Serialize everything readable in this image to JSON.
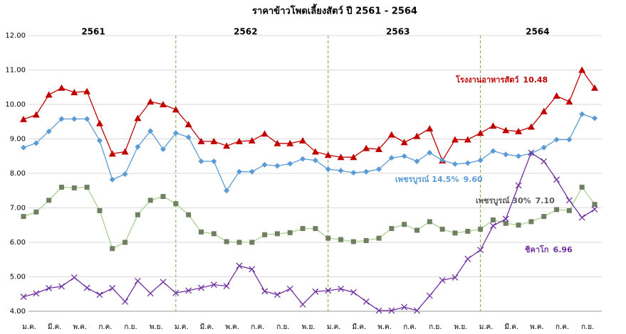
{
  "chart_data": {
    "type": "line",
    "title": "ราคาข้าวโพดเลี้ยงสัตว์ ปี 2561 - 2564",
    "year_labels": [
      "2561",
      "2562",
      "2563",
      "2564"
    ],
    "categories": [
      "ม.ค.",
      null,
      "มี.ค.",
      null,
      "พ.ค.",
      null,
      "ก.ค.",
      null,
      "ก.ย.",
      null,
      "พ.ย.",
      null,
      "ม.ค.",
      null,
      "มี.ค.",
      null,
      "พ.ค.",
      null,
      "ก.ค.",
      null,
      "ก.ย.",
      null,
      "พ.ย.",
      null,
      "ม.ค.",
      null,
      "มี.ค.",
      null,
      "พ.ค.",
      null,
      "ก.ค.",
      null,
      "ก.ย.",
      null,
      "พ.ย.",
      null,
      "ม.ค.",
      null,
      "มี.ค.",
      null,
      "พ.ค.",
      null,
      "ก.ค.",
      null,
      "ก.ย.",
      null
    ],
    "ylim": [
      4,
      12
    ],
    "yticks": [
      {
        "value": 4,
        "label": "4.00"
      },
      {
        "value": 5,
        "label": "5.00"
      },
      {
        "value": 6,
        "label": "6.00"
      },
      {
        "value": 7,
        "label": "7.00"
      },
      {
        "value": 8,
        "label": "8.00"
      },
      {
        "value": 9,
        "label": "9.00"
      },
      {
        "value": 10,
        "label": "10.00"
      },
      {
        "value": 11,
        "label": "11.00"
      },
      {
        "value": 12,
        "label": "12.00"
      }
    ],
    "grid": true,
    "series": [
      {
        "name": "โรงงานอาหารสัตว์",
        "color": "#c00000",
        "marker": "triangle",
        "marker_color": "#c00000",
        "end_label": "10.48",
        "values": [
          9.57,
          9.7,
          10.28,
          10.48,
          10.35,
          10.38,
          9.45,
          8.57,
          8.63,
          9.6,
          10.08,
          10.0,
          9.85,
          9.42,
          8.93,
          8.93,
          8.8,
          8.93,
          8.95,
          9.15,
          8.87,
          8.87,
          8.95,
          8.63,
          8.53,
          8.47,
          8.47,
          8.73,
          8.7,
          9.12,
          8.9,
          9.08,
          9.3,
          8.37,
          8.98,
          8.98,
          9.17,
          9.38,
          9.25,
          9.22,
          9.35,
          9.8,
          10.25,
          10.08,
          11.0,
          10.48
        ]
      },
      {
        "name": "เพชรบูรณ์ 14.5%",
        "color": "#5b9bd5",
        "marker": "diamond",
        "marker_color": "#5b9bd5",
        "end_label": "9.60",
        "values": [
          8.75,
          8.88,
          9.22,
          9.58,
          9.58,
          9.58,
          8.95,
          7.82,
          7.98,
          8.77,
          9.23,
          8.7,
          9.17,
          9.05,
          8.35,
          8.35,
          7.5,
          8.05,
          8.05,
          8.25,
          8.22,
          8.28,
          8.42,
          8.38,
          8.12,
          8.08,
          8.02,
          8.05,
          8.12,
          8.45,
          8.5,
          8.35,
          8.6,
          8.38,
          8.27,
          8.3,
          8.38,
          8.65,
          8.55,
          8.5,
          8.58,
          8.75,
          8.98,
          8.98,
          9.72,
          9.6
        ]
      },
      {
        "name": "เพชรบูรณ์ 30%",
        "color": "#a9d18e",
        "marker": "square",
        "marker_color": "#6e7f62",
        "end_label": "7.10",
        "values": [
          6.75,
          6.88,
          7.22,
          7.6,
          7.58,
          7.6,
          6.92,
          5.82,
          6.0,
          6.8,
          7.22,
          7.33,
          7.12,
          6.8,
          6.3,
          6.25,
          6.02,
          6.0,
          6.0,
          6.22,
          6.25,
          6.28,
          6.4,
          6.4,
          6.12,
          6.08,
          6.02,
          6.05,
          6.12,
          6.4,
          6.52,
          6.35,
          6.6,
          6.38,
          6.27,
          6.32,
          6.38,
          6.65,
          6.55,
          6.5,
          6.6,
          6.75,
          6.95,
          6.92,
          7.6,
          7.1
        ]
      },
      {
        "name": "ชิคาโก",
        "color": "#7030a0",
        "marker": "x",
        "marker_color": "#7030a0",
        "end_label": "6.96",
        "values": [
          4.42,
          4.52,
          4.67,
          4.72,
          4.98,
          4.68,
          4.48,
          4.67,
          4.28,
          4.88,
          4.52,
          4.85,
          4.53,
          4.6,
          4.68,
          4.77,
          4.73,
          5.32,
          5.22,
          4.58,
          4.48,
          4.65,
          4.2,
          4.57,
          4.6,
          4.65,
          4.55,
          4.28,
          4.02,
          4.02,
          4.12,
          4.02,
          4.45,
          4.9,
          4.98,
          5.52,
          5.78,
          6.48,
          6.68,
          7.65,
          8.6,
          8.35,
          7.82,
          7.22,
          6.72,
          6.96
        ]
      }
    ]
  }
}
